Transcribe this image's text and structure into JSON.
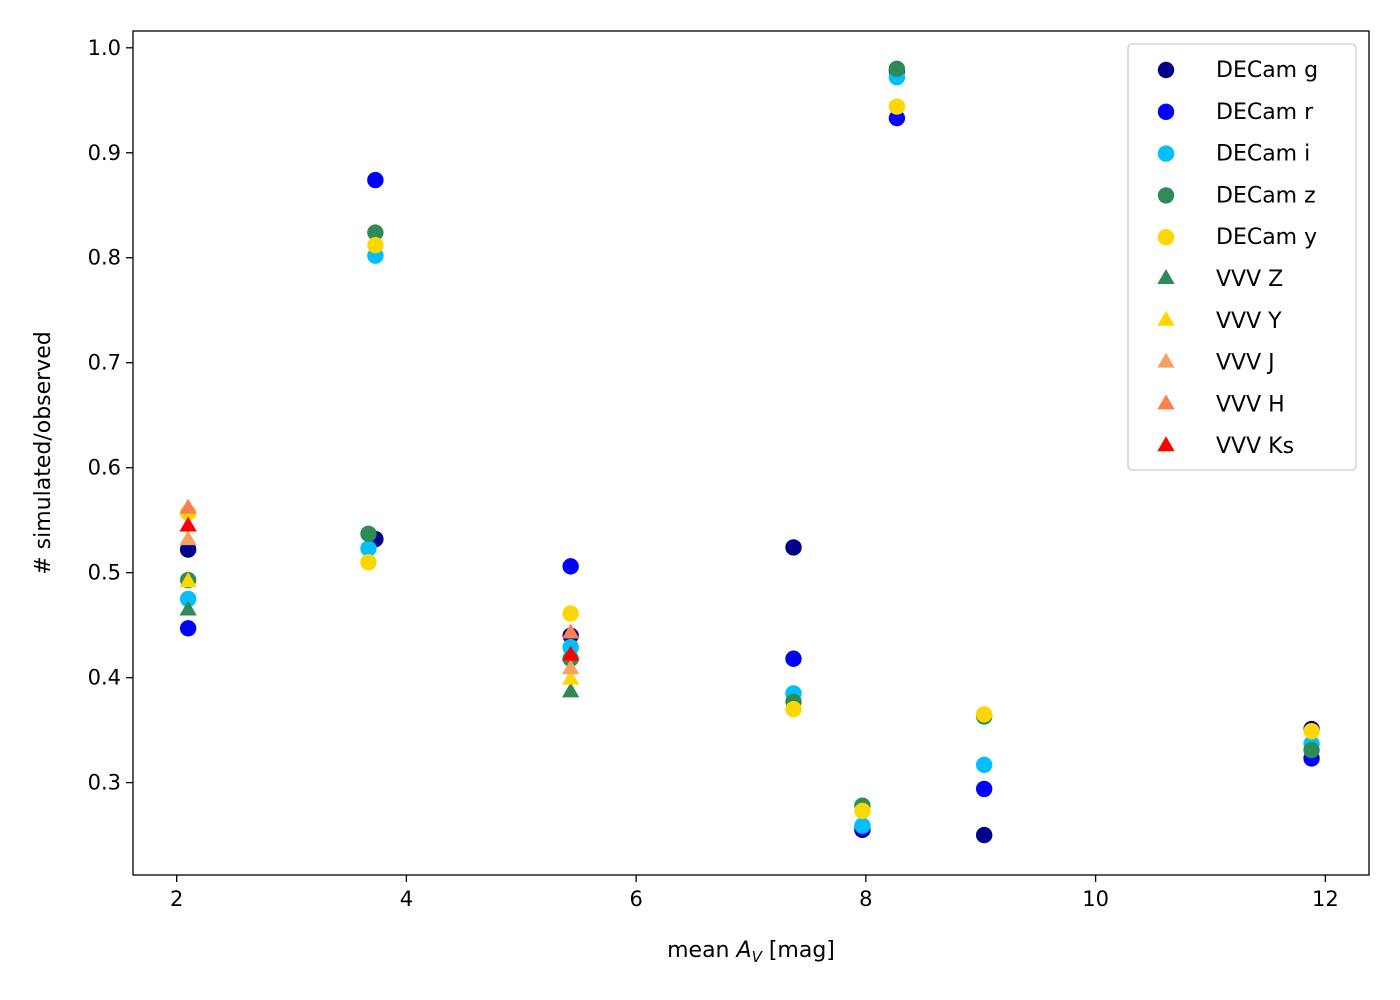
{
  "chart_data": {
    "type": "scatter",
    "xlabel": {
      "prefix": "mean ",
      "var": "A",
      "sub": "V",
      "suffix": " [mag]"
    },
    "ylabel": "# simulated/observed",
    "xlim": [
      1.62,
      12.38
    ],
    "ylim": [
      0.212,
      1.016
    ],
    "xticks": [
      {
        "value": 2,
        "label": "2"
      },
      {
        "value": 4,
        "label": "4"
      },
      {
        "value": 6,
        "label": "6"
      },
      {
        "value": 8,
        "label": "8"
      },
      {
        "value": 10,
        "label": "10"
      },
      {
        "value": 12,
        "label": "12"
      }
    ],
    "yticks": [
      {
        "value": 0.3,
        "label": "0.3"
      },
      {
        "value": 0.4,
        "label": "0.4"
      },
      {
        "value": 0.5,
        "label": "0.5"
      },
      {
        "value": 0.6,
        "label": "0.6"
      },
      {
        "value": 0.7,
        "label": "0.7"
      },
      {
        "value": 0.8,
        "label": "0.8"
      },
      {
        "value": 0.9,
        "label": "0.9"
      },
      {
        "value": 1.0,
        "label": "1.0"
      }
    ],
    "grid": false,
    "legend_position": "top-right",
    "series": [
      {
        "name": "DECam g",
        "marker": "circle",
        "color": "#00008b",
        "points": [
          [
            2.1,
            0.522
          ],
          [
            3.73,
            0.532
          ],
          [
            5.43,
            0.44
          ],
          [
            7.37,
            0.524
          ],
          [
            7.97,
            0.255
          ],
          [
            8.27,
            0.978
          ],
          [
            9.03,
            0.25
          ],
          [
            11.88,
            0.351
          ]
        ]
      },
      {
        "name": "DECam r",
        "marker": "circle",
        "color": "#0000ff",
        "points": [
          [
            2.1,
            0.447
          ],
          [
            3.73,
            0.874
          ],
          [
            5.43,
            0.506
          ],
          [
            7.37,
            0.418
          ],
          [
            7.97,
            0.257
          ],
          [
            8.27,
            0.933
          ],
          [
            9.03,
            0.294
          ],
          [
            11.88,
            0.323
          ]
        ]
      },
      {
        "name": "DECam i",
        "marker": "circle",
        "color": "#00bfff",
        "points": [
          [
            2.1,
            0.475
          ],
          [
            3.67,
            0.523
          ],
          [
            3.73,
            0.802
          ],
          [
            5.43,
            0.429
          ],
          [
            7.37,
            0.385
          ],
          [
            7.97,
            0.259
          ],
          [
            8.27,
            0.972
          ],
          [
            9.03,
            0.317
          ],
          [
            11.88,
            0.337
          ]
        ]
      },
      {
        "name": "DECam z",
        "marker": "circle",
        "color": "#2e8b57",
        "points": [
          [
            2.1,
            0.493
          ],
          [
            3.67,
            0.537
          ],
          [
            3.73,
            0.824
          ],
          [
            5.43,
            0.418
          ],
          [
            7.37,
            0.377
          ],
          [
            7.97,
            0.278
          ],
          [
            8.27,
            0.98
          ],
          [
            9.03,
            0.363
          ],
          [
            11.88,
            0.331
          ]
        ]
      },
      {
        "name": "DECam y",
        "marker": "circle",
        "color": "#ffd700",
        "points": [
          [
            2.1,
            0.557
          ],
          [
            3.67,
            0.51
          ],
          [
            3.73,
            0.812
          ],
          [
            5.43,
            0.461
          ],
          [
            7.37,
            0.37
          ],
          [
            7.97,
            0.273
          ],
          [
            8.27,
            0.944
          ],
          [
            9.03,
            0.365
          ],
          [
            11.88,
            0.349
          ]
        ]
      },
      {
        "name": "VVV Z",
        "marker": "triangle",
        "color": "#2e8b57",
        "points": [
          [
            2.1,
            0.464
          ],
          [
            5.43,
            0.386
          ]
        ]
      },
      {
        "name": "VVV Y",
        "marker": "triangle",
        "color": "#ffd700",
        "points": [
          [
            2.1,
            0.491
          ],
          [
            5.43,
            0.398
          ]
        ]
      },
      {
        "name": "VVV J",
        "marker": "triangle",
        "color": "#f4a460",
        "points": [
          [
            2.1,
            0.531
          ],
          [
            5.43,
            0.408
          ]
        ]
      },
      {
        "name": "VVV H",
        "marker": "triangle",
        "color": "#ff7f50",
        "points": [
          [
            2.1,
            0.561
          ],
          [
            5.43,
            0.442
          ]
        ]
      },
      {
        "name": "VVV Ks",
        "marker": "triangle",
        "color": "#ff0000",
        "points": [
          [
            2.1,
            0.544
          ],
          [
            5.43,
            0.421
          ]
        ]
      }
    ]
  }
}
